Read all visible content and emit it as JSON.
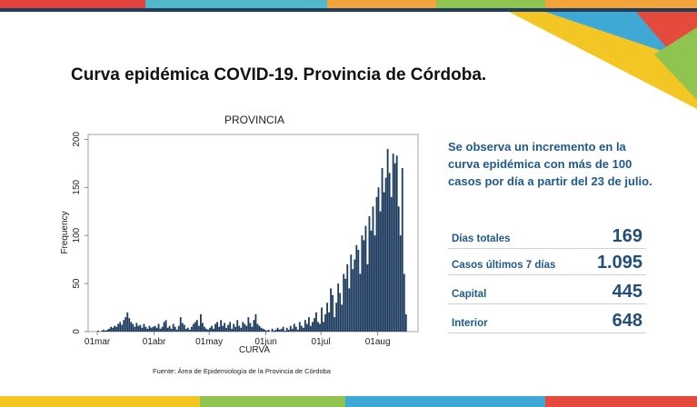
{
  "slide": {
    "title": "Curva epidémica COVID-19. Provincia de Córdoba.",
    "summary": "Se observa un incremento en la curva epidémica con más de 100 casos por día a partir del 23 de julio.",
    "stats": [
      {
        "label": "Días totales",
        "value": "169"
      },
      {
        "label": "Casos últimos 7 días",
        "value": "1.095"
      },
      {
        "label": "Capital",
        "value": "445"
      },
      {
        "label": "Interior",
        "value": "648"
      }
    ],
    "source": "Fuente: Área de Epidemiología de la Provincia de Córdoba"
  },
  "chart_data": {
    "type": "histogram",
    "title": "PROVINCIA",
    "x_label": "CURVA",
    "y_label": "Frequency",
    "color": "#1b3a5e",
    "grid": false,
    "bins": [
      0,
      1,
      2,
      3,
      4,
      5,
      6,
      7,
      8,
      9,
      10,
      11,
      12,
      13,
      14,
      15,
      16,
      17,
      18,
      19,
      20,
      21,
      22,
      23,
      24,
      25,
      26,
      27,
      28,
      29,
      30,
      31,
      32,
      33,
      34,
      35,
      36,
      37,
      38,
      39,
      40,
      41,
      42,
      43,
      44,
      45,
      46,
      47,
      48,
      49,
      50,
      51,
      52,
      53,
      54,
      55,
      56,
      57,
      58,
      59,
      60,
      61,
      62,
      63,
      64,
      65,
      66,
      67,
      68,
      69,
      70,
      71,
      72,
      73,
      74,
      75,
      76,
      77,
      78,
      79,
      80,
      81,
      82,
      83,
      84,
      85,
      86,
      87,
      88,
      89,
      90,
      91,
      92,
      93,
      94,
      95,
      96,
      97,
      98,
      99,
      100,
      101,
      102,
      103,
      104,
      105,
      106,
      107,
      108,
      109,
      110,
      111,
      112,
      113,
      114,
      115,
      116,
      117,
      118,
      119,
      120,
      121,
      122,
      123,
      124,
      125,
      126,
      127,
      128,
      129,
      130,
      131,
      132,
      133,
      134,
      135,
      136,
      137,
      138,
      139,
      140,
      141,
      142,
      143,
      144,
      145,
      146,
      147,
      148,
      149,
      150,
      151,
      152,
      153,
      154,
      155,
      156,
      157,
      158,
      159,
      160,
      161,
      162,
      163,
      164,
      165,
      166,
      167,
      168,
      169
    ],
    "values": [
      1,
      0,
      1,
      2,
      1,
      2,
      3,
      5,
      4,
      6,
      5,
      8,
      10,
      7,
      12,
      15,
      20,
      14,
      10,
      8,
      5,
      9,
      6,
      7,
      4,
      8,
      5,
      3,
      6,
      4,
      5,
      6,
      4,
      8,
      3,
      5,
      10,
      12,
      4,
      6,
      3,
      8,
      5,
      2,
      6,
      15,
      9,
      7,
      3,
      4,
      2,
      5,
      8,
      10,
      12,
      6,
      18,
      9,
      5,
      3,
      2,
      4,
      6,
      3,
      8,
      10,
      5,
      12,
      6,
      9,
      4,
      7,
      10,
      3,
      8,
      5,
      12,
      6,
      4,
      10,
      8,
      6,
      15,
      9,
      5,
      12,
      18,
      8,
      6,
      4,
      3,
      2,
      1,
      2,
      0,
      3,
      1,
      2,
      4,
      2,
      3,
      5,
      1,
      4,
      2,
      6,
      3,
      8,
      5,
      2,
      10,
      6,
      4,
      12,
      8,
      15,
      6,
      10,
      14,
      20,
      10,
      8,
      25,
      10,
      18,
      30,
      20,
      45,
      38,
      15,
      30,
      50,
      40,
      28,
      60,
      55,
      70,
      45,
      80,
      65,
      75,
      90,
      85,
      60,
      100,
      95,
      110,
      70,
      120,
      105,
      130,
      100,
      140,
      150,
      125,
      170,
      145,
      160,
      190,
      165,
      140,
      185,
      175,
      183,
      130,
      100,
      170,
      60,
      18
    ],
    "xlim": [
      -5,
      175
    ],
    "xticks": [
      {
        "value": 0,
        "label": "01mar"
      },
      {
        "value": 31,
        "label": "01abr"
      },
      {
        "value": 61,
        "label": "01may"
      },
      {
        "value": 92,
        "label": "01jun"
      },
      {
        "value": 122,
        "label": "01jul"
      },
      {
        "value": 153,
        "label": "01aug"
      }
    ],
    "ylim": [
      0,
      205
    ],
    "yticks": [
      0,
      50,
      100,
      150,
      200
    ]
  }
}
